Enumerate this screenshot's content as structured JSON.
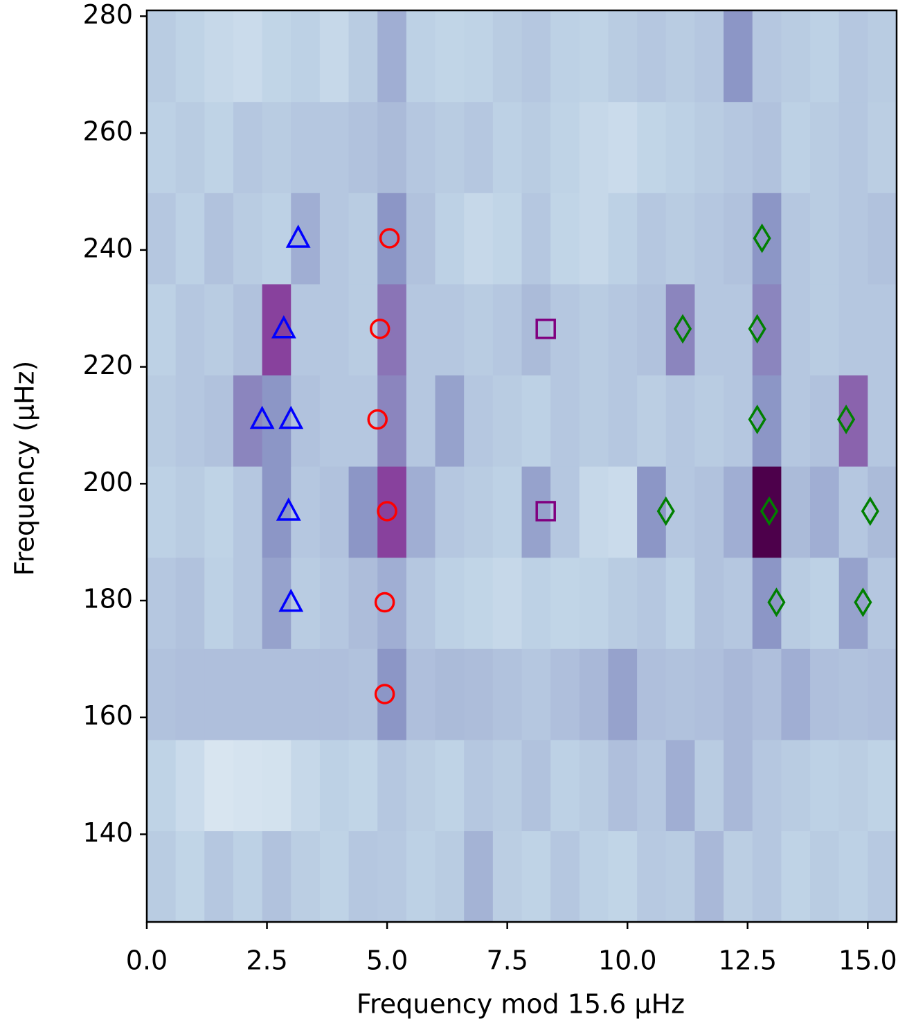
{
  "chart_data": {
    "type": "echelle",
    "xlabel": "Frequency mod 15.6 μHz",
    "ylabel": "Frequency (μHz)",
    "xlim": [
      0,
      15.6
    ],
    "ylim": [
      125,
      281
    ],
    "xticks": [
      {
        "value": 0,
        "label": "0.0"
      },
      {
        "value": 2.5,
        "label": "2.5"
      },
      {
        "value": 5,
        "label": "5.0"
      },
      {
        "value": 7.5,
        "label": "7.5"
      },
      {
        "value": 10,
        "label": "10.0"
      },
      {
        "value": 12.5,
        "label": "12.5"
      },
      {
        "value": 15,
        "label": "15.0"
      }
    ],
    "yticks": [
      140,
      160,
      180,
      200,
      220,
      240,
      260,
      280
    ],
    "heatmap": {
      "colormap": [
        "#f7fcfd",
        "#bfd3e6",
        "#8c96c6",
        "#88419d",
        "#4d004b"
      ],
      "y_edges": [
        125,
        140.6,
        156.2,
        171.8,
        187.4,
        203,
        218.6,
        234.2,
        249.8,
        265.4,
        281
      ],
      "values": [
        [
          0.28,
          0.24,
          0.3,
          0.26,
          0.32,
          0.27,
          0.25,
          0.3,
          0.29,
          0.26,
          0.28,
          0.38,
          0.27,
          0.25,
          0.3,
          0.26,
          0.24,
          0.29,
          0.28,
          0.36,
          0.27,
          0.3,
          0.25,
          0.28,
          0.26,
          0.29
        ],
        [
          0.25,
          0.2,
          0.14,
          0.15,
          0.16,
          0.22,
          0.26,
          0.24,
          0.3,
          0.27,
          0.25,
          0.3,
          0.28,
          0.32,
          0.26,
          0.28,
          0.33,
          0.3,
          0.4,
          0.28,
          0.36,
          0.3,
          0.28,
          0.26,
          0.27,
          0.25
        ],
        [
          0.32,
          0.33,
          0.33,
          0.33,
          0.33,
          0.33,
          0.33,
          0.32,
          0.5,
          0.33,
          0.35,
          0.34,
          0.32,
          0.3,
          0.33,
          0.36,
          0.45,
          0.33,
          0.32,
          0.33,
          0.36,
          0.33,
          0.4,
          0.33,
          0.32,
          0.33
        ],
        [
          0.3,
          0.32,
          0.26,
          0.3,
          0.45,
          0.28,
          0.3,
          0.34,
          0.4,
          0.3,
          0.26,
          0.24,
          0.22,
          0.26,
          0.24,
          0.25,
          0.28,
          0.3,
          0.26,
          0.32,
          0.3,
          0.5,
          0.28,
          0.26,
          0.45,
          0.3
        ],
        [
          0.26,
          0.28,
          0.25,
          0.3,
          0.5,
          0.3,
          0.32,
          0.5,
          0.75,
          0.4,
          0.3,
          0.28,
          0.26,
          0.45,
          0.3,
          0.22,
          0.2,
          0.5,
          0.3,
          0.32,
          0.4,
          1.0,
          0.35,
          0.4,
          0.3,
          0.35
        ],
        [
          0.28,
          0.3,
          0.32,
          0.55,
          0.5,
          0.32,
          0.3,
          0.3,
          0.55,
          0.3,
          0.45,
          0.3,
          0.28,
          0.26,
          0.3,
          0.28,
          0.3,
          0.27,
          0.3,
          0.28,
          0.3,
          0.5,
          0.3,
          0.32,
          0.65,
          0.3
        ],
        [
          0.26,
          0.3,
          0.28,
          0.32,
          0.75,
          0.3,
          0.3,
          0.28,
          0.6,
          0.3,
          0.3,
          0.28,
          0.3,
          0.35,
          0.3,
          0.28,
          0.3,
          0.32,
          0.55,
          0.3,
          0.3,
          0.55,
          0.3,
          0.28,
          0.3,
          0.3
        ],
        [
          0.3,
          0.26,
          0.32,
          0.28,
          0.26,
          0.4,
          0.3,
          0.28,
          0.5,
          0.32,
          0.26,
          0.22,
          0.24,
          0.3,
          0.24,
          0.22,
          0.26,
          0.3,
          0.28,
          0.3,
          0.32,
          0.5,
          0.3,
          0.28,
          0.3,
          0.32
        ],
        [
          0.26,
          0.28,
          0.25,
          0.3,
          0.28,
          0.3,
          0.3,
          0.32,
          0.35,
          0.3,
          0.28,
          0.3,
          0.26,
          0.28,
          0.25,
          0.22,
          0.2,
          0.24,
          0.26,
          0.28,
          0.3,
          0.32,
          0.26,
          0.28,
          0.3,
          0.27
        ],
        [
          0.28,
          0.25,
          0.22,
          0.2,
          0.24,
          0.26,
          0.22,
          0.28,
          0.4,
          0.26,
          0.24,
          0.25,
          0.28,
          0.3,
          0.26,
          0.25,
          0.28,
          0.3,
          0.28,
          0.3,
          0.5,
          0.3,
          0.28,
          0.26,
          0.3,
          0.28
        ]
      ]
    },
    "series": [
      {
        "marker": "triangle",
        "color": "#0000ff",
        "x": [
          3.15,
          2.85,
          2.4,
          3.0,
          2.95,
          3.0
        ],
        "values": [
          242,
          226.5,
          211,
          211,
          195.3,
          179.7
        ]
      },
      {
        "marker": "circle",
        "color": "#ff0000",
        "x": [
          5.05,
          4.85,
          4.8,
          5.0,
          4.95,
          4.95
        ],
        "values": [
          242,
          226.5,
          211,
          195.3,
          179.7,
          164
        ]
      },
      {
        "marker": "square",
        "color": "#800080",
        "x": [
          8.3,
          8.3
        ],
        "values": [
          226.5,
          195.3
        ]
      },
      {
        "marker": "diamond",
        "color": "#008000",
        "x": [
          12.8,
          11.15,
          12.7,
          12.7,
          14.55,
          10.8,
          12.95,
          15.05,
          13.1,
          14.9
        ],
        "values": [
          242,
          226.5,
          226.5,
          211,
          211,
          195.3,
          195.3,
          195.3,
          179.7,
          179.7
        ]
      }
    ]
  }
}
